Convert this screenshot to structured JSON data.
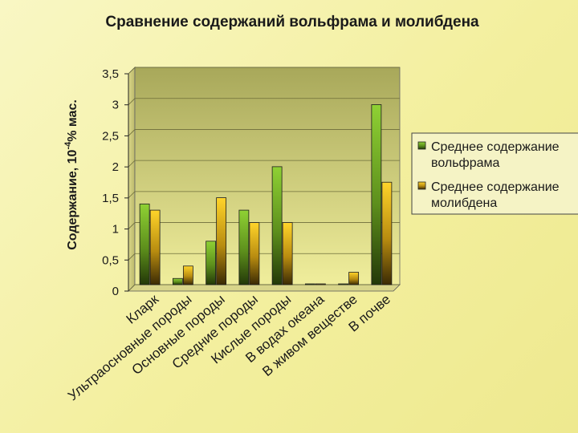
{
  "chart_data": {
    "type": "bar",
    "title": "Сравнение содержаний вольфрама и молибдена",
    "ylabel": "Содержание, 10",
    "ylabel_exp": "-4",
    "ylabel_unit": "% мас.",
    "xlabel": "",
    "ylim": [
      0,
      3.5
    ],
    "yticks": [
      "0",
      "0,5",
      "1",
      "1,5",
      "2",
      "2,5",
      "3",
      "3,5"
    ],
    "ytick_values": [
      0,
      0.5,
      1,
      1.5,
      2,
      2.5,
      3,
      3.5
    ],
    "grid": true,
    "legend_position": "right",
    "categories": [
      "Кларк",
      "Ультраосновные породы",
      "Основные породы",
      "Средние породы",
      "Кислые породы",
      "В водах океана",
      "В живом веществе",
      "В почве"
    ],
    "series": [
      {
        "name": "Среднее содержание вольфрама",
        "legend_lines": [
          "Среднее содержание",
          "вольфрама"
        ],
        "color": "#7ab82a",
        "values": [
          1.3,
          0.1,
          0.7,
          1.2,
          1.9,
          0.0,
          0.01,
          2.9
        ]
      },
      {
        "name": "Среднее содержание молибдена",
        "legend_lines": [
          "Среднее содержание",
          "молибдена"
        ],
        "color": "#f2c418",
        "values": [
          1.2,
          0.3,
          1.4,
          1.0,
          1.0,
          0.01,
          0.2,
          1.65
        ]
      }
    ]
  }
}
